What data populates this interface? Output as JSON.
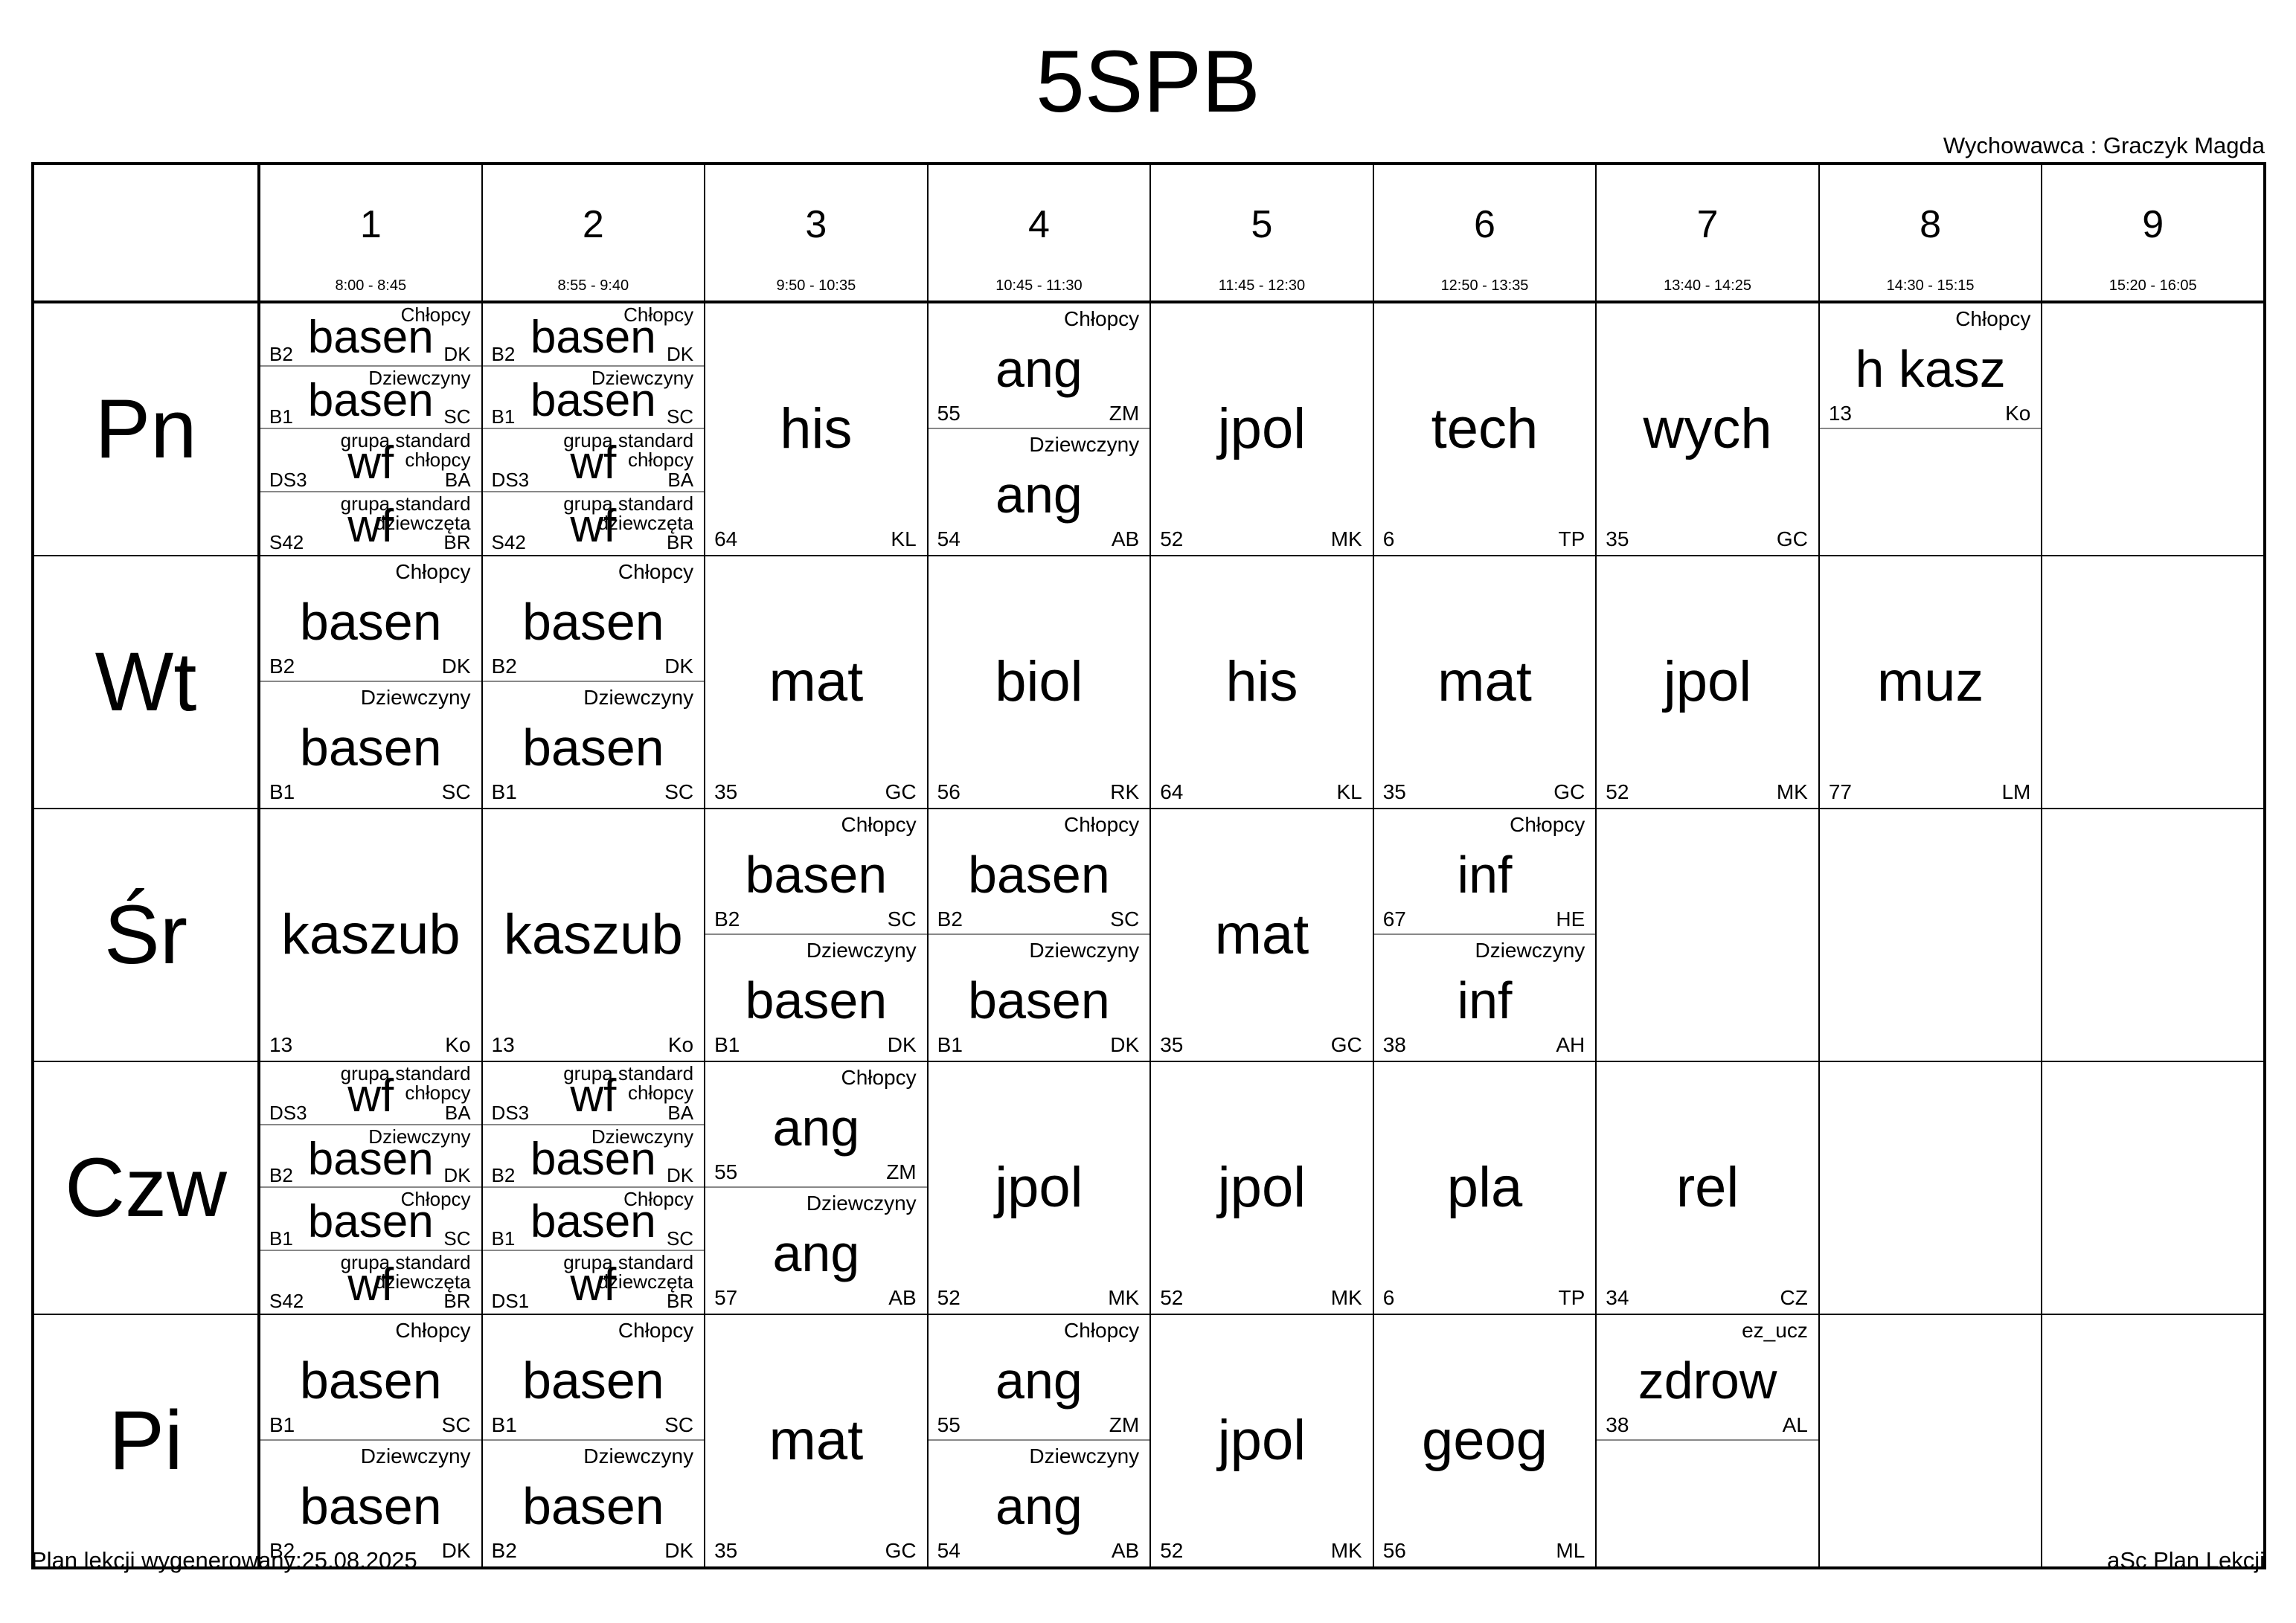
{
  "header": {
    "title": "5SPB",
    "teacher_label": "Wychowawca : Graczyk Magda"
  },
  "footer": {
    "generated": "Plan lekcji wygenerowany:25.08.2025",
    "app": "aSc Plan Lekcji"
  },
  "periods": [
    {
      "num": "1",
      "time": "8:00 - 8:45"
    },
    {
      "num": "2",
      "time": "8:55 - 9:40"
    },
    {
      "num": "3",
      "time": "9:50 - 10:35"
    },
    {
      "num": "4",
      "time": "10:45 - 11:30"
    },
    {
      "num": "5",
      "time": "11:45 - 12:30"
    },
    {
      "num": "6",
      "time": "12:50 - 13:35"
    },
    {
      "num": "7",
      "time": "13:40 - 14:25"
    },
    {
      "num": "8",
      "time": "14:30 - 15:15"
    },
    {
      "num": "9",
      "time": "15:20 - 16:05"
    }
  ],
  "days": [
    {
      "name": "Pn",
      "cells": [
        {
          "parts": [
            {
              "subject": "basen",
              "group": "Chłopcy",
              "room": "B2",
              "teacher": "DK"
            },
            {
              "subject": "basen",
              "group": "Dziewczyny",
              "room": "B1",
              "teacher": "SC"
            },
            {
              "subject": "wf",
              "group": "grupa standard chłopcy",
              "room": "DS3",
              "teacher": "BA"
            },
            {
              "subject": "wf",
              "group": "grupa standard dziewczęta",
              "room": "S42",
              "teacher": "BR"
            }
          ]
        },
        {
          "parts": [
            {
              "subject": "basen",
              "group": "Chłopcy",
              "room": "B2",
              "teacher": "DK"
            },
            {
              "subject": "basen",
              "group": "Dziewczyny",
              "room": "B1",
              "teacher": "SC"
            },
            {
              "subject": "wf",
              "group": "grupa standard chłopcy",
              "room": "DS3",
              "teacher": "BA"
            },
            {
              "subject": "wf",
              "group": "grupa standard dziewczęta",
              "room": "S42",
              "teacher": "BR"
            }
          ]
        },
        {
          "parts": [
            {
              "subject": "his",
              "group": "",
              "room": "64",
              "teacher": "KL"
            }
          ]
        },
        {
          "parts": [
            {
              "subject": "ang",
              "group": "Chłopcy",
              "room": "55",
              "teacher": "ZM"
            },
            {
              "subject": "ang",
              "group": "Dziewczyny",
              "room": "54",
              "teacher": "AB"
            }
          ]
        },
        {
          "parts": [
            {
              "subject": "jpol",
              "group": "",
              "room": "52",
              "teacher": "MK"
            }
          ]
        },
        {
          "parts": [
            {
              "subject": "tech",
              "group": "",
              "room": "6",
              "teacher": "TP"
            }
          ]
        },
        {
          "parts": [
            {
              "subject": "wych",
              "group": "",
              "room": "35",
              "teacher": "GC"
            }
          ]
        },
        {
          "parts": [
            {
              "subject": "h kasz",
              "group": "Chłopcy",
              "room": "13",
              "teacher": "Ko"
            },
            {
              "empty": true
            }
          ]
        },
        {
          "parts": []
        }
      ]
    },
    {
      "name": "Wt",
      "cells": [
        {
          "parts": [
            {
              "subject": "basen",
              "group": "Chłopcy",
              "room": "B2",
              "teacher": "DK"
            },
            {
              "subject": "basen",
              "group": "Dziewczyny",
              "room": "B1",
              "teacher": "SC"
            }
          ]
        },
        {
          "parts": [
            {
              "subject": "basen",
              "group": "Chłopcy",
              "room": "B2",
              "teacher": "DK"
            },
            {
              "subject": "basen",
              "group": "Dziewczyny",
              "room": "B1",
              "teacher": "SC"
            }
          ]
        },
        {
          "parts": [
            {
              "subject": "mat",
              "group": "",
              "room": "35",
              "teacher": "GC"
            }
          ]
        },
        {
          "parts": [
            {
              "subject": "biol",
              "group": "",
              "room": "56",
              "teacher": "RK"
            }
          ]
        },
        {
          "parts": [
            {
              "subject": "his",
              "group": "",
              "room": "64",
              "teacher": "KL"
            }
          ]
        },
        {
          "parts": [
            {
              "subject": "mat",
              "group": "",
              "room": "35",
              "teacher": "GC"
            }
          ]
        },
        {
          "parts": [
            {
              "subject": "jpol",
              "group": "",
              "room": "52",
              "teacher": "MK"
            }
          ]
        },
        {
          "parts": [
            {
              "subject": "muz",
              "group": "",
              "room": "77",
              "teacher": "LM"
            }
          ]
        },
        {
          "parts": []
        }
      ]
    },
    {
      "name": "Śr",
      "cells": [
        {
          "parts": [
            {
              "subject": "kaszub",
              "group": "",
              "room": "13",
              "teacher": "Ko"
            }
          ]
        },
        {
          "parts": [
            {
              "subject": "kaszub",
              "group": "",
              "room": "13",
              "teacher": "Ko"
            }
          ]
        },
        {
          "parts": [
            {
              "subject": "basen",
              "group": "Chłopcy",
              "room": "B2",
              "teacher": "SC"
            },
            {
              "subject": "basen",
              "group": "Dziewczyny",
              "room": "B1",
              "teacher": "DK"
            }
          ]
        },
        {
          "parts": [
            {
              "subject": "basen",
              "group": "Chłopcy",
              "room": "B2",
              "teacher": "SC"
            },
            {
              "subject": "basen",
              "group": "Dziewczyny",
              "room": "B1",
              "teacher": "DK"
            }
          ]
        },
        {
          "parts": [
            {
              "subject": "mat",
              "group": "",
              "room": "35",
              "teacher": "GC"
            }
          ]
        },
        {
          "parts": [
            {
              "subject": "inf",
              "group": "Chłopcy",
              "room": "67",
              "teacher": "HE"
            },
            {
              "subject": "inf",
              "group": "Dziewczyny",
              "room": "38",
              "teacher": "AH"
            }
          ]
        },
        {
          "parts": []
        },
        {
          "parts": []
        },
        {
          "parts": []
        }
      ]
    },
    {
      "name": "Czw",
      "cells": [
        {
          "parts": [
            {
              "subject": "wf",
              "group": "grupa standard chłopcy",
              "room": "DS3",
              "teacher": "BA"
            },
            {
              "subject": "basen",
              "group": "Dziewczyny",
              "room": "B2",
              "teacher": "DK"
            },
            {
              "subject": "basen",
              "group": "Chłopcy",
              "room": "B1",
              "teacher": "SC"
            },
            {
              "subject": "wf",
              "group": "grupa standard dziewczęta",
              "room": "S42",
              "teacher": "BR"
            }
          ]
        },
        {
          "parts": [
            {
              "subject": "wf",
              "group": "grupa standard chłopcy",
              "room": "DS3",
              "teacher": "BA"
            },
            {
              "subject": "basen",
              "group": "Dziewczyny",
              "room": "B2",
              "teacher": "DK"
            },
            {
              "subject": "basen",
              "group": "Chłopcy",
              "room": "B1",
              "teacher": "SC"
            },
            {
              "subject": "wf",
              "group": "grupa standard dziewczęta",
              "room": "DS1",
              "teacher": "BR"
            }
          ]
        },
        {
          "parts": [
            {
              "subject": "ang",
              "group": "Chłopcy",
              "room": "55",
              "teacher": "ZM"
            },
            {
              "subject": "ang",
              "group": "Dziewczyny",
              "room": "57",
              "teacher": "AB"
            }
          ]
        },
        {
          "parts": [
            {
              "subject": "jpol",
              "group": "",
              "room": "52",
              "teacher": "MK"
            }
          ]
        },
        {
          "parts": [
            {
              "subject": "jpol",
              "group": "",
              "room": "52",
              "teacher": "MK"
            }
          ]
        },
        {
          "parts": [
            {
              "subject": "pla",
              "group": "",
              "room": "6",
              "teacher": "TP"
            }
          ]
        },
        {
          "parts": [
            {
              "subject": "rel",
              "group": "",
              "room": "34",
              "teacher": "CZ"
            }
          ]
        },
        {
          "parts": []
        },
        {
          "parts": []
        }
      ]
    },
    {
      "name": "Pi",
      "cells": [
        {
          "parts": [
            {
              "subject": "basen",
              "group": "Chłopcy",
              "room": "B1",
              "teacher": "SC"
            },
            {
              "subject": "basen",
              "group": "Dziewczyny",
              "room": "B2",
              "teacher": "DK"
            }
          ]
        },
        {
          "parts": [
            {
              "subject": "basen",
              "group": "Chłopcy",
              "room": "B1",
              "teacher": "SC"
            },
            {
              "subject": "basen",
              "group": "Dziewczyny",
              "room": "B2",
              "teacher": "DK"
            }
          ]
        },
        {
          "parts": [
            {
              "subject": "mat",
              "group": "",
              "room": "35",
              "teacher": "GC"
            }
          ]
        },
        {
          "parts": [
            {
              "subject": "ang",
              "group": "Chłopcy",
              "room": "55",
              "teacher": "ZM"
            },
            {
              "subject": "ang",
              "group": "Dziewczyny",
              "room": "54",
              "teacher": "AB"
            }
          ]
        },
        {
          "parts": [
            {
              "subject": "jpol",
              "group": "",
              "room": "52",
              "teacher": "MK"
            }
          ]
        },
        {
          "parts": [
            {
              "subject": "geog",
              "group": "",
              "room": "56",
              "teacher": "ML"
            }
          ]
        },
        {
          "parts": [
            {
              "subject": "zdrow",
              "group": "ez_ucz",
              "room": "38",
              "teacher": "AL"
            },
            {
              "empty": true
            }
          ]
        },
        {
          "parts": []
        },
        {
          "parts": []
        }
      ]
    }
  ]
}
